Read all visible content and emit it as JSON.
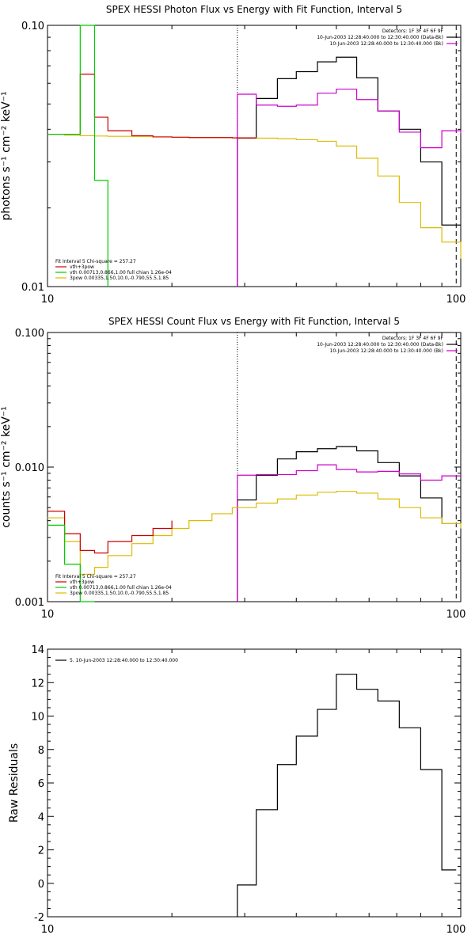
{
  "chart_data": [
    {
      "type": "line",
      "title": "SPEX HESSI Photon Flux vs Energy with Fit Function, Interval 5",
      "ylabel": "photons s⁻¹ cm⁻² keV⁻¹",
      "xlabel": "",
      "xscale": "log",
      "yscale": "log",
      "xlim": [
        10,
        100
      ],
      "ylim": [
        0.01,
        0.1
      ],
      "x_tick_labels": [
        "10",
        "100"
      ],
      "y_tick_labels": [
        "0.01",
        "0.10"
      ],
      "header_right": [
        "Detectors: 1F 3F 4F 6F 9F",
        "10-Jun-2003 12:28:40.000 to 12:30:40.000 (Data-Bk)",
        "10-Jun-2003 12:28:40.000 to 12:30:40.000 (Bk)"
      ],
      "header_colors": [
        "#000000",
        "#cc00cc"
      ],
      "legend_left": [
        "Fit Interval 5    Chi-square = 257.27",
        "vth+3pow",
        "vth 0.00713,0.866,1.00  full chian 1.26e-04",
        "3pow 0.00335,1.50,10.0,-0.790,55.5,1.85"
      ],
      "legend_colors": [
        "#cc0000",
        "#00cc00",
        "#ddbb00"
      ],
      "vertical_markers": [
        {
          "x": 28.8,
          "style": "dotted"
        },
        {
          "x": 97.5,
          "style": "dashed"
        }
      ],
      "series": [
        {
          "color": "#000000",
          "edges": [
            28.8,
            32,
            36,
            40,
            45,
            50,
            56,
            63,
            71,
            80,
            90,
            100
          ],
          "values": [
            0.037,
            0.0525,
            0.0625,
            0.0665,
            0.0725,
            0.0755,
            0.063,
            0.047,
            0.04,
            0.03,
            0.0172,
            null
          ]
        },
        {
          "color": "#cc00cc",
          "edges": [
            28.8,
            32,
            36,
            40,
            45,
            50,
            56,
            63,
            71,
            80,
            90,
            100
          ],
          "values": [
            0.0545,
            0.0495,
            0.049,
            0.0495,
            0.055,
            0.057,
            0.052,
            0.047,
            0.039,
            0.034,
            0.0395,
            0.0385
          ]
        },
        {
          "color": "#ddbb00",
          "edges": [
            10,
            11,
            12,
            13,
            14,
            16,
            18,
            20,
            22,
            25,
            28,
            32,
            36,
            40,
            45,
            50,
            56,
            63,
            71,
            80,
            90,
            100
          ],
          "values": [
            0.0383,
            0.038,
            0.0378,
            0.0377,
            0.0376,
            0.0375,
            0.0374,
            0.0373,
            0.0372,
            0.0372,
            0.0371,
            0.037,
            0.0368,
            0.0365,
            0.036,
            0.0345,
            0.031,
            0.0265,
            0.021,
            0.0168,
            0.0148,
            0.0128
          ]
        },
        {
          "color": "#cc0000",
          "edges": [
            10,
            11,
            12,
            13,
            14,
            16,
            18,
            20,
            22,
            25,
            28,
            32
          ],
          "values": [
            0.0383,
            0.0383,
            0.065,
            0.0445,
            0.0395,
            0.0378,
            0.0374,
            0.0373,
            0.0372,
            0.0372,
            0.0371,
            0.037
          ]
        },
        {
          "color": "#00cc00",
          "edges": [
            10,
            11,
            12,
            13,
            14
          ],
          "values": [
            0.0383,
            0.0383,
            0.1,
            0.0255,
            0.001
          ]
        }
      ]
    },
    {
      "type": "line",
      "title": "SPEX HESSI Count Flux vs Energy with Fit Function, Interval 5",
      "ylabel": "counts s⁻¹ cm⁻² keV⁻¹",
      "xlabel": "",
      "xscale": "log",
      "yscale": "log",
      "xlim": [
        10,
        100
      ],
      "ylim": [
        0.001,
        0.1
      ],
      "x_tick_labels": [
        "10",
        "100"
      ],
      "y_tick_labels": [
        "0.001",
        "0.010",
        "0.100"
      ],
      "header_right": [
        "Detectors: 1F 3F 4F 6F 9F",
        "10-Jun-2003 12:28:40.000 to 12:30:40.000 (Data-Bk)",
        "10-Jun-2003 12:28:40.000 to 12:30:40.000 (Bk)"
      ],
      "header_colors": [
        "#000000",
        "#cc00cc"
      ],
      "legend_left": [
        "Fit Interval 5    Chi-square = 257.27",
        "vth+3pow",
        "vth 0.00713,0.866,1.00  full chian 1.26e-04",
        "3pow 0.00335,1.50,10.0,-0.790,55.5,1.85"
      ],
      "legend_colors": [
        "#cc0000",
        "#00cc00",
        "#ddbb00"
      ],
      "vertical_markers": [
        {
          "x": 28.8,
          "style": "dotted"
        },
        {
          "x": 97.5,
          "style": "dashed"
        }
      ],
      "series": [
        {
          "color": "#000000",
          "edges": [
            28.8,
            32,
            36,
            40,
            45,
            50,
            56,
            63,
            71,
            80,
            90,
            100
          ],
          "values": [
            0.0057,
            0.0087,
            0.0115,
            0.013,
            0.0137,
            0.0142,
            0.0132,
            0.0108,
            0.0086,
            0.0059,
            0.0038,
            null
          ]
        },
        {
          "color": "#cc00cc",
          "edges": [
            28.8,
            32,
            36,
            40,
            45,
            50,
            56,
            63,
            71,
            80,
            90,
            100
          ],
          "values": [
            0.0087,
            0.0088,
            0.0088,
            0.0094,
            0.0104,
            0.0096,
            0.0092,
            0.0093,
            0.0089,
            0.008,
            0.0086,
            0.0086
          ]
        },
        {
          "color": "#ddbb00",
          "edges": [
            10,
            11,
            12,
            13,
            14,
            16,
            18,
            20,
            22,
            25,
            28,
            32,
            36,
            40,
            45,
            50,
            56,
            63,
            71,
            80,
            90,
            100
          ],
          "values": [
            0.0042,
            0.0028,
            0.0016,
            0.0018,
            0.0022,
            0.0027,
            0.0031,
            0.0035,
            0.004,
            0.0045,
            0.005,
            0.0054,
            0.0058,
            0.0062,
            0.0065,
            0.0066,
            0.0064,
            0.0058,
            0.005,
            0.0042,
            0.0038,
            0.0035
          ]
        },
        {
          "color": "#cc0000",
          "edges": [
            10,
            11,
            12,
            13,
            14,
            16,
            18,
            20
          ],
          "values": [
            0.0047,
            0.0032,
            0.0024,
            0.0023,
            0.0028,
            0.0031,
            0.0035,
            0.004
          ]
        },
        {
          "color": "#00cc00",
          "edges": [
            10,
            11,
            12,
            13
          ],
          "values": [
            0.0037,
            0.0019,
            0.001,
            0.001
          ]
        }
      ]
    },
    {
      "type": "line",
      "title": "",
      "ylabel": "Raw Residuals",
      "xlabel": "",
      "xscale": "log",
      "yscale": "linear",
      "xlim": [
        10,
        100
      ],
      "ylim": [
        -2,
        14
      ],
      "x_tick_labels": [
        "10",
        "100"
      ],
      "y_tick_labels": [
        "-2",
        "0",
        "2",
        "4",
        "6",
        "8",
        "10",
        "12",
        "14"
      ],
      "legend_left": [
        "5. 10-Jun-2003 12:28:40.000 to 12:30:40.000"
      ],
      "legend_colors": [],
      "vertical_markers": [],
      "series": [
        {
          "color": "#000000",
          "edges": [
            28.8,
            32,
            36,
            40,
            45,
            50,
            56,
            63,
            71,
            80,
            90,
            97.5
          ],
          "values": [
            -0.1,
            4.4,
            7.1,
            8.8,
            10.4,
            12.5,
            11.6,
            10.9,
            9.3,
            6.8,
            0.8
          ]
        }
      ]
    }
  ]
}
